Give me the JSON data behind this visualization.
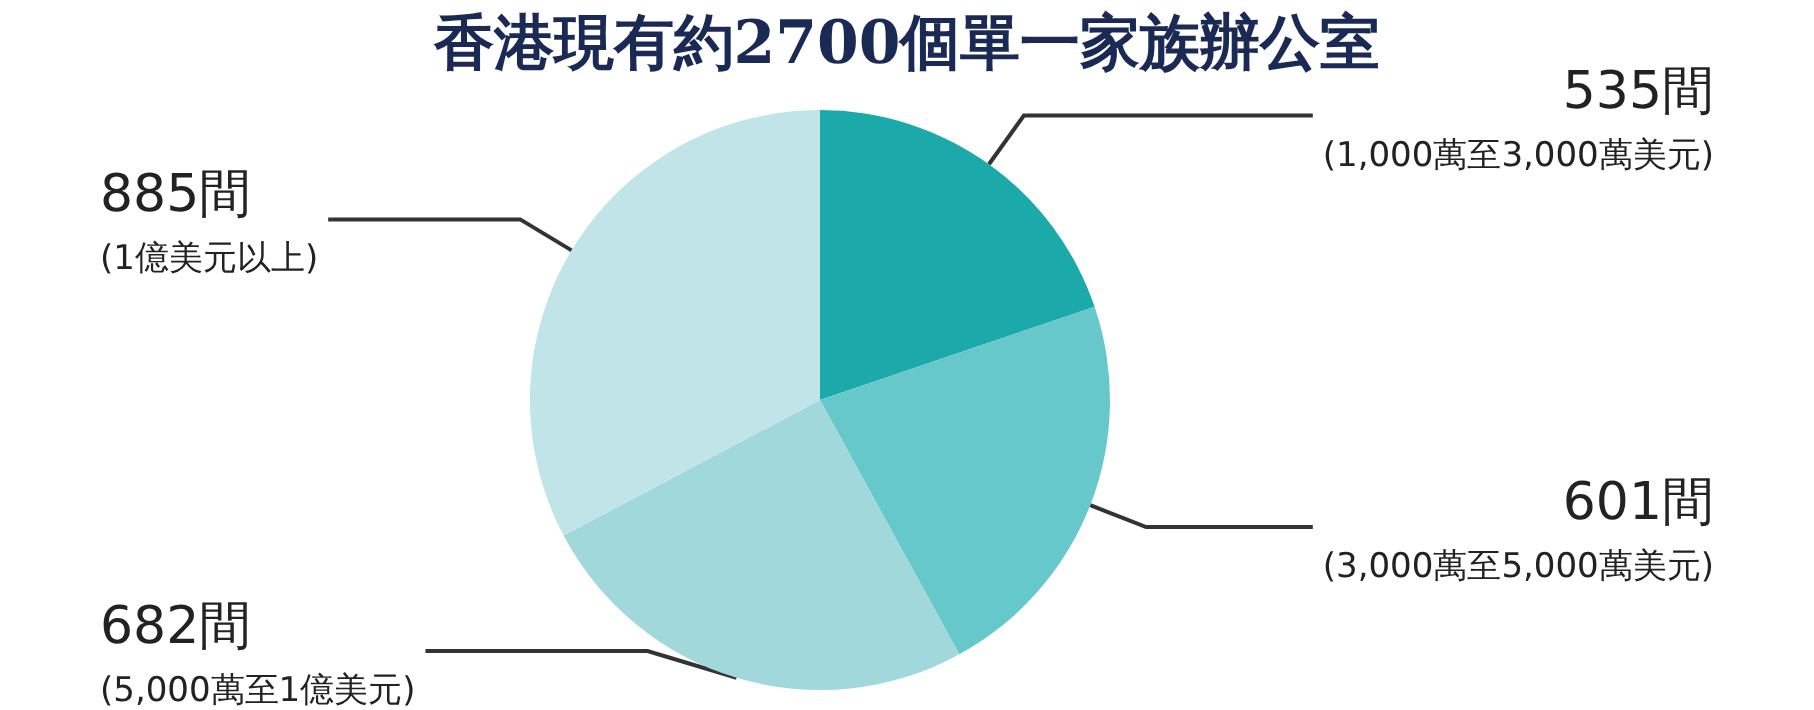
{
  "chart_data": {
    "type": "pie",
    "title": "香港現有約2700個單一家族辦公室",
    "categories": [
      "(1,000萬至3,000萬美元)",
      "(3,000萬至5,000萬美元)",
      "(5,000萬至1億美元)",
      "(1億美元以上)"
    ],
    "values": [
      535,
      601,
      682,
      885
    ],
    "value_labels": [
      "535間",
      "601間",
      "682間",
      "885間"
    ],
    "colors": [
      "#1ba9a9",
      "#66c8ca",
      "#a0d8dc",
      "#c0e4e7"
    ]
  }
}
